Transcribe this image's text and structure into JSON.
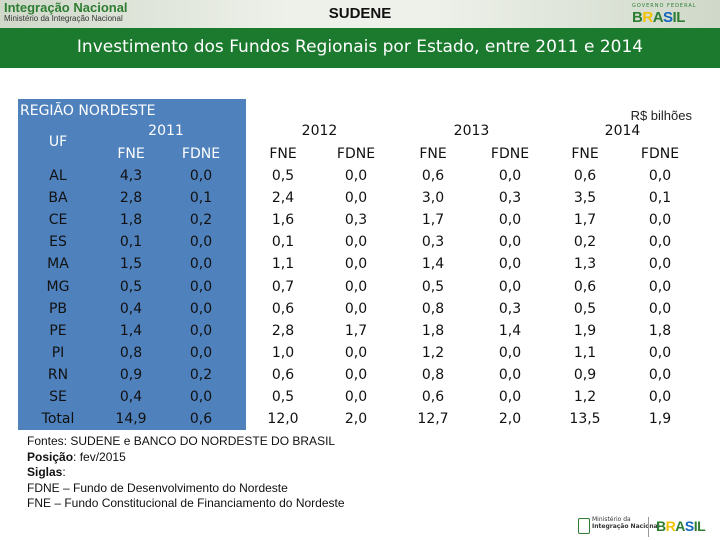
{
  "header": {
    "logo_title": "Integração Nacional",
    "logo_subtitle": "Ministério da Integração Nacional",
    "org": "SUDENE",
    "gov_tag": "GOVERNO FEDERAL",
    "brasil_letters": [
      "B",
      "R",
      "A",
      "S",
      "I",
      "L"
    ]
  },
  "banner": {
    "title": "Investimento dos Fundos Regionais por Estado, entre 2011 e 2014"
  },
  "table": {
    "region": "REGIÃO NORDESTE",
    "unit": "R$ bilhões",
    "uf_header": "UF",
    "years": [
      "2011",
      "2012",
      "2013",
      "2014"
    ],
    "fund_headers": [
      "FNE",
      "FDNE",
      "FNE",
      "FDNE",
      "FNE",
      "FDNE",
      "FNE",
      "FDNE"
    ],
    "rows": [
      {
        "uf": "AL",
        "values": [
          "4,3",
          "0,0",
          "0,5",
          "0,0",
          "0,6",
          "0,0",
          "0,6",
          "0,0"
        ]
      },
      {
        "uf": "BA",
        "values": [
          "2,8",
          "0,1",
          "2,4",
          "0,0",
          "3,0",
          "0,3",
          "3,5",
          "0,1"
        ]
      },
      {
        "uf": "CE",
        "values": [
          "1,8",
          "0,2",
          "1,6",
          "0,3",
          "1,7",
          "0,0",
          "1,7",
          "0,0"
        ]
      },
      {
        "uf": "ES",
        "values": [
          "0,1",
          "0,0",
          "0,1",
          "0,0",
          "0,3",
          "0,0",
          "0,2",
          "0,0"
        ]
      },
      {
        "uf": "MA",
        "values": [
          "1,5",
          "0,0",
          "1,1",
          "0,0",
          "1,4",
          "0,0",
          "1,3",
          "0,0"
        ]
      },
      {
        "uf": "MG",
        "values": [
          "0,5",
          "0,0",
          "0,7",
          "0,0",
          "0,5",
          "0,0",
          "0,6",
          "0,0"
        ]
      },
      {
        "uf": "PB",
        "values": [
          "0,4",
          "0,0",
          "0,6",
          "0,0",
          "0,8",
          "0,3",
          "0,5",
          "0,0"
        ]
      },
      {
        "uf": "PE",
        "values": [
          "1,4",
          "0,0",
          "2,8",
          "1,7",
          "1,8",
          "1,4",
          "1,9",
          "1,8"
        ]
      },
      {
        "uf": "PI",
        "values": [
          "0,8",
          "0,0",
          "1,0",
          "0,0",
          "1,2",
          "0,0",
          "1,1",
          "0,0"
        ]
      },
      {
        "uf": "RN",
        "values": [
          "0,9",
          "0,2",
          "0,6",
          "0,0",
          "0,8",
          "0,0",
          "0,9",
          "0,0"
        ]
      },
      {
        "uf": "SE",
        "values": [
          "0,4",
          "0,0",
          "0,5",
          "0,0",
          "0,6",
          "0,0",
          "1,2",
          "0,0"
        ]
      },
      {
        "uf": "Total",
        "values": [
          "14,9",
          "0,6",
          "12,0",
          "2,0",
          "12,7",
          "2,0",
          "13,5",
          "1,9"
        ]
      }
    ]
  },
  "footer": {
    "fontes_label": "Fontes",
    "fontes_text": ": SUDENE e BANCO DO NORDESTE DO BRASIL",
    "posicao_label": "Posição",
    "posicao_text": ": fev/2015",
    "siglas_label": "Siglas",
    "siglas_text": ":",
    "fdne_def": "FDNE – Fundo de Desenvolvimento do Nordeste",
    "fne_def": "FNE – Fundo Constitucional de Financiamento do Nordeste",
    "ministry_line1": "Ministério da",
    "ministry_line2": "Integração Nacional"
  },
  "colors": {
    "banner": "#1b7a2e",
    "table_header": "#4f81bd"
  }
}
